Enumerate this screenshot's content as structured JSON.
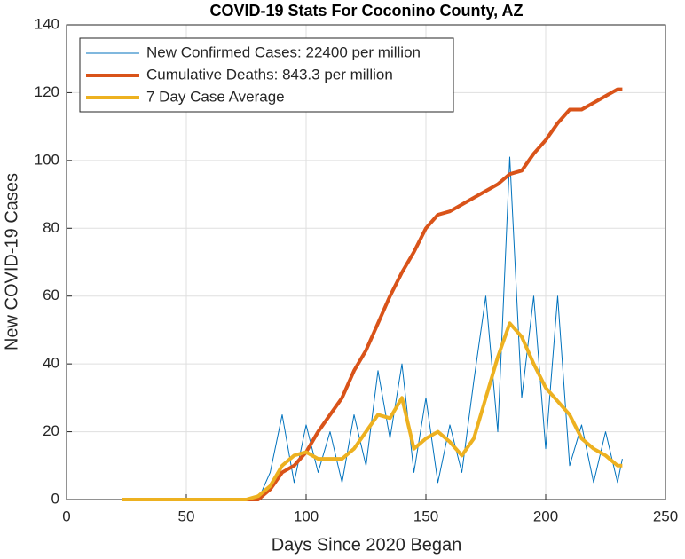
{
  "chart_data": {
    "type": "line",
    "title": "COVID-19 Stats For Coconino County, AZ",
    "xlabel": "Days Since 2020 Began",
    "ylabel": "New COVID-19 Cases",
    "x": [
      23,
      25,
      30,
      35,
      40,
      45,
      50,
      55,
      60,
      65,
      70,
      75,
      80,
      85,
      90,
      95,
      100,
      105,
      110,
      115,
      120,
      125,
      130,
      135,
      140,
      145,
      150,
      155,
      160,
      165,
      170,
      175,
      180,
      185,
      190,
      195,
      200,
      205,
      210,
      215,
      220,
      225,
      230,
      232
    ],
    "series": [
      {
        "name": "New Confirmed Cases: 22400 per million",
        "color": "#0072bd",
        "width": 1,
        "values": [
          0,
          0,
          0,
          0,
          0,
          0,
          0,
          0,
          0,
          0,
          0,
          0,
          0,
          8,
          25,
          5,
          22,
          8,
          20,
          5,
          25,
          10,
          38,
          18,
          40,
          8,
          30,
          5,
          22,
          8,
          35,
          60,
          20,
          101,
          30,
          60,
          15,
          60,
          10,
          22,
          5,
          20,
          5,
          12
        ]
      },
      {
        "name": "Cumulative Deaths: 843.3 per million",
        "color": "#d95319",
        "width": 4,
        "values": [
          0,
          0,
          0,
          0,
          0,
          0,
          0,
          0,
          0,
          0,
          0,
          0,
          0,
          3,
          8,
          10,
          14,
          20,
          25,
          30,
          38,
          44,
          52,
          60,
          67,
          73,
          80,
          84,
          85,
          87,
          89,
          91,
          93,
          96,
          97,
          102,
          106,
          111,
          115,
          115,
          117,
          119,
          121,
          121
        ]
      },
      {
        "name": "7 Day Case Average",
        "color": "#edb120",
        "width": 4,
        "values": [
          0,
          0,
          0,
          0,
          0,
          0,
          0,
          0,
          0,
          0,
          0,
          0,
          1,
          4,
          10,
          13,
          14,
          12,
          12,
          12,
          15,
          20,
          25,
          24,
          30,
          15,
          18,
          20,
          17,
          13,
          18,
          30,
          42,
          52,
          48,
          40,
          33,
          29,
          25,
          18,
          15,
          13,
          10,
          10
        ]
      }
    ],
    "xlim": [
      0,
      250
    ],
    "xticks": [
      0,
      50,
      100,
      150,
      200,
      250
    ],
    "ylim": [
      0,
      140
    ],
    "yticks": [
      0,
      20,
      40,
      60,
      80,
      100,
      120,
      140
    ],
    "grid": true,
    "legend": "upper left"
  }
}
